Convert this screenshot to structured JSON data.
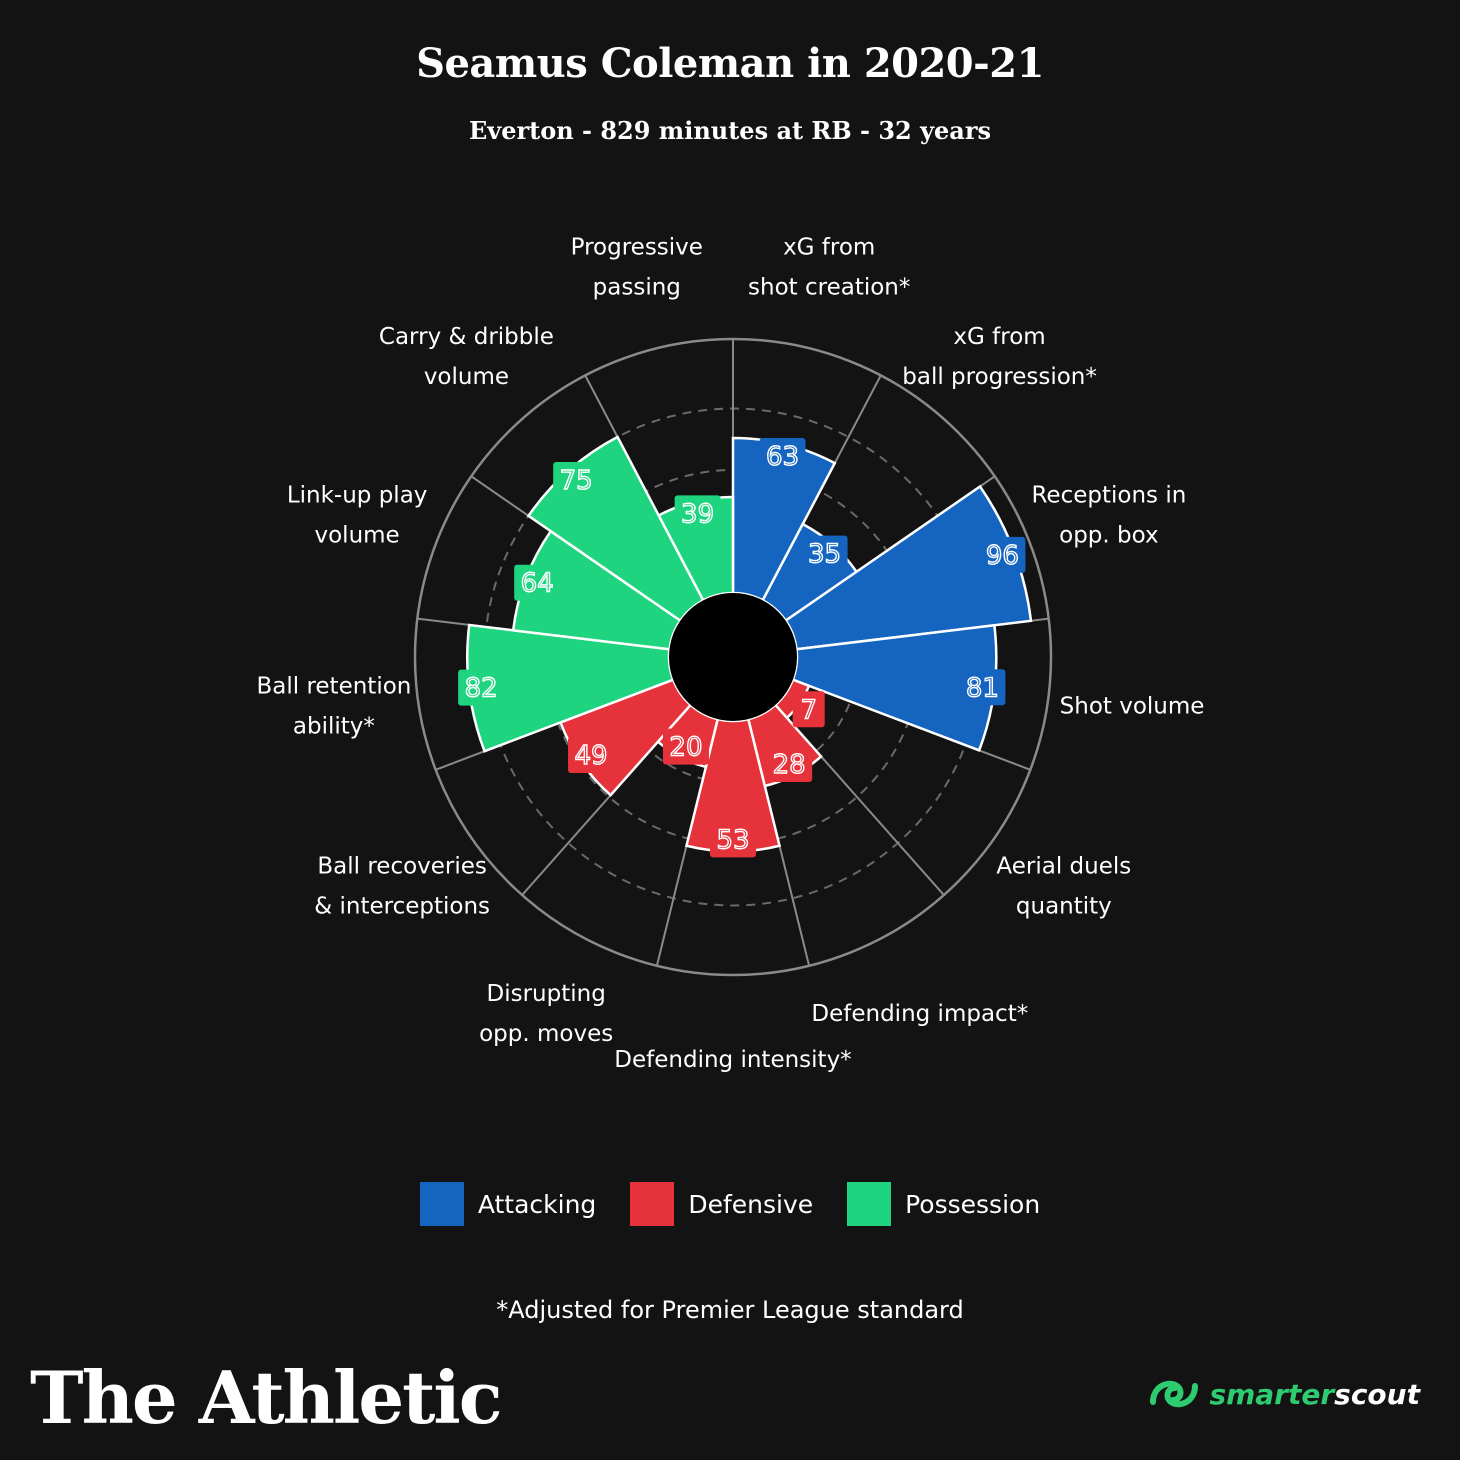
{
  "header": {
    "title": "Seamus Coleman in 2020-21",
    "subtitle": "Everton - 829 minutes at RB - 32 years"
  },
  "colors": {
    "Attacking": "#1565c0",
    "Defensive": "#e5323b",
    "Possession": "#1ed47f",
    "background": "#131313"
  },
  "chart_data": {
    "type": "polar-bar",
    "range": [
      0,
      100
    ],
    "categories": [
      {
        "label": "xG from\nshot creation*",
        "value": 63,
        "group": "Attacking"
      },
      {
        "label": "xG from\nball progression*",
        "value": 35,
        "group": "Attacking"
      },
      {
        "label": "Receptions in\nopp. box",
        "value": 96,
        "group": "Attacking"
      },
      {
        "label": "Shot volume",
        "value": 81,
        "group": "Attacking"
      },
      {
        "label": "Aerial duels\nquantity",
        "value": 7,
        "group": "Defensive"
      },
      {
        "label": "Defending impact*",
        "value": 28,
        "group": "Defensive"
      },
      {
        "label": "Defending intensity*",
        "value": 53,
        "group": "Defensive"
      },
      {
        "label": "Disrupting\nopp. moves",
        "value": 20,
        "group": "Defensive"
      },
      {
        "label": "Ball recoveries\n& interceptions",
        "value": 49,
        "group": "Defensive"
      },
      {
        "label": "Ball retention\nability*",
        "value": 82,
        "group": "Possession"
      },
      {
        "label": "Link-up play\nvolume",
        "value": 64,
        "group": "Possession"
      },
      {
        "label": "Carry & dribble\nvolume",
        "value": 75,
        "group": "Possession"
      },
      {
        "label": "Progressive\npassing",
        "value": 39,
        "group": "Possession"
      }
    ]
  },
  "legend": [
    {
      "label": "Attacking",
      "color": "#1565c0"
    },
    {
      "label": "Defensive",
      "color": "#e5323b"
    },
    {
      "label": "Possession",
      "color": "#1ed47f"
    }
  ],
  "footnote": "*Adjusted for Premier League standard",
  "brand": "The Athletic",
  "partner": {
    "part1": "smarter",
    "part2": "scout"
  }
}
